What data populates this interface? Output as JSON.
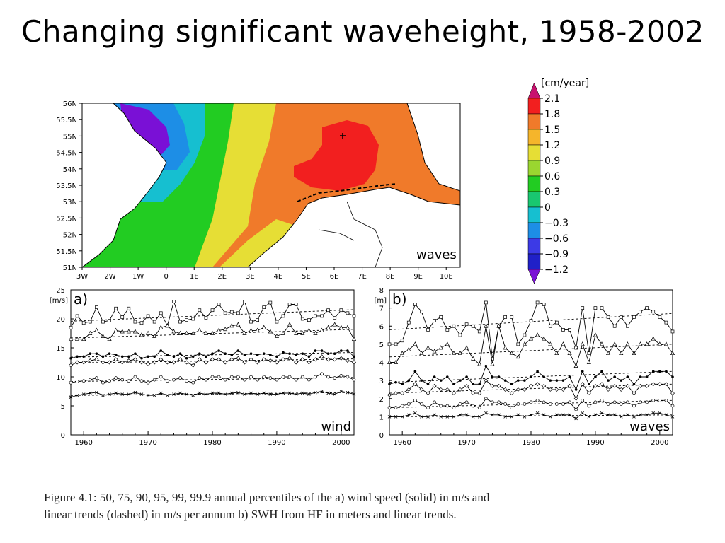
{
  "page": {
    "title": "Changing significant waveheight, 1958-2002",
    "caption_line1": "Figure 4.1:  50, 75, 90, 95, 99, 99.9 annual percentiles of the a) wind speed (solid) in m/s and",
    "caption_line2": "linear trends (dashed) in m/s per annum b) SWH from HF in meters and linear trends."
  },
  "colors": {
    "scale": [
      "#7a10d6",
      "#3c3ae6",
      "#1d8ee6",
      "#16bfd0",
      "#19c770",
      "#22cc22",
      "#9ad630",
      "#e6de35",
      "#f5b52b",
      "#f07a2a",
      "#f21f1f",
      "#c8126e"
    ],
    "land": "#ffffff",
    "coast": "#000000"
  },
  "map": {
    "label": "waves",
    "lat_ticks": [
      "56N",
      "55.5N",
      "55N",
      "54.5N",
      "54N",
      "53.5N",
      "53N",
      "52.5N",
      "52N",
      "51.5N",
      "51N"
    ],
    "lon_ticks": [
      "3W",
      "2W",
      "1W",
      "0",
      "1E",
      "2E",
      "3E",
      "4E",
      "5E",
      "6E",
      "7E",
      "8E",
      "9E",
      "10E"
    ],
    "colorbar": {
      "unit": "[cm/year]",
      "labels": [
        "2.1",
        "1.8",
        "1.5",
        "1.2",
        "0.9",
        "0.6",
        "0.3",
        "0",
        "−0.3",
        "−0.6",
        "−0.9",
        "−1.2"
      ]
    }
  },
  "chart_data": [
    {
      "type": "line",
      "panel": "a)",
      "label": "wind",
      "ylabel": "[m/s]",
      "xlim": [
        1958,
        2002
      ],
      "ylim": [
        0,
        25
      ],
      "x_ticks": [
        "1960",
        "1970",
        "1980",
        "1990",
        "2000"
      ],
      "y_ticks": [
        "0",
        "5",
        "10",
        "15",
        "20",
        "25"
      ],
      "x": [
        1958,
        1959,
        1960,
        1961,
        1962,
        1963,
        1964,
        1965,
        1966,
        1967,
        1968,
        1969,
        1970,
        1971,
        1972,
        1973,
        1974,
        1975,
        1976,
        1977,
        1978,
        1979,
        1980,
        1981,
        1982,
        1983,
        1984,
        1985,
        1986,
        1987,
        1988,
        1989,
        1990,
        1991,
        1992,
        1993,
        1994,
        1995,
        1996,
        1997,
        1998,
        1999,
        2000,
        2001,
        2002
      ],
      "series": [
        {
          "marker": "square",
          "values": [
            18.5,
            20.5,
            19.3,
            19.5,
            22.0,
            19.5,
            19.7,
            21.8,
            20.3,
            21.8,
            19.5,
            19.3,
            20.5,
            19.5,
            21.0,
            18.8,
            23.0,
            19.5,
            19.8,
            20.0,
            21.5,
            20.2,
            21.5,
            22.5,
            21.0,
            21.2,
            21.0,
            23.0,
            19.5,
            19.8,
            22.0,
            22.8,
            19.5,
            20.5,
            22.5,
            22.5,
            20.0,
            19.8,
            20.5,
            20.5,
            21.5,
            20.2,
            21.5,
            21.0,
            20.5
          ],
          "trend": [
            19.6,
            21.6
          ]
        },
        {
          "marker": "triangle",
          "values": [
            16.5,
            16.5,
            16.5,
            17.5,
            18.0,
            17.0,
            16.5,
            18.0,
            17.8,
            17.8,
            17.8,
            17.2,
            17.5,
            17.0,
            18.5,
            18.8,
            17.8,
            17.5,
            17.5,
            17.5,
            18.0,
            17.5,
            17.5,
            18.0,
            18.2,
            18.8,
            19.0,
            17.5,
            18.0,
            18.0,
            18.5,
            17.8,
            17.0,
            17.5,
            19.0,
            17.5,
            17.5,
            18.0,
            17.5,
            18.0,
            18.5,
            19.0,
            18.5,
            18.5,
            16.5
          ],
          "trend": [
            16.7,
            18.2
          ]
        },
        {
          "marker": "filled",
          "values": [
            13.2,
            13.5,
            13.5,
            14.0,
            14.0,
            13.5,
            14.0,
            13.8,
            13.5,
            13.5,
            14.0,
            13.2,
            13.5,
            13.5,
            14.5,
            13.8,
            13.5,
            14.0,
            13.2,
            13.5,
            14.0,
            13.5,
            14.0,
            14.5,
            14.0,
            13.8,
            14.5,
            13.8,
            14.0,
            13.8,
            14.0,
            13.8,
            13.5,
            14.2,
            14.0,
            13.8,
            14.0,
            13.5,
            14.5,
            14.5,
            14.0,
            14.0,
            14.5,
            14.5,
            13.5
          ],
          "trend": [
            13.4,
            14.2
          ]
        },
        {
          "marker": "diamond",
          "values": [
            12.0,
            12.5,
            12.5,
            12.8,
            13.0,
            12.5,
            12.5,
            13.0,
            12.5,
            12.8,
            13.0,
            12.5,
            12.2,
            12.5,
            13.0,
            12.5,
            12.5,
            13.0,
            12.5,
            12.0,
            13.0,
            12.5,
            13.0,
            13.0,
            12.5,
            13.0,
            13.2,
            12.5,
            13.0,
            12.5,
            13.0,
            12.8,
            12.5,
            13.0,
            13.2,
            12.5,
            13.0,
            12.5,
            13.0,
            13.5,
            13.0,
            13.0,
            13.2,
            12.8,
            12.5
          ],
          "trend": [
            12.4,
            13.1
          ]
        },
        {
          "marker": "circle",
          "values": [
            9.0,
            9.2,
            9.3,
            9.5,
            9.8,
            9.0,
            9.3,
            9.8,
            9.5,
            9.3,
            10.0,
            9.3,
            9.0,
            9.5,
            10.0,
            9.3,
            9.5,
            9.8,
            9.3,
            9.0,
            9.8,
            9.5,
            10.0,
            10.0,
            9.5,
            10.0,
            10.0,
            9.5,
            10.0,
            9.5,
            10.0,
            9.8,
            9.5,
            10.0,
            10.0,
            9.5,
            10.0,
            9.5,
            10.0,
            10.5,
            10.0,
            9.8,
            10.2,
            10.0,
            9.5
          ],
          "trend": [
            9.2,
            9.9
          ]
        },
        {
          "marker": "cross",
          "values": [
            6.5,
            6.8,
            7.0,
            7.2,
            7.3,
            6.8,
            7.0,
            7.2,
            7.0,
            7.0,
            7.3,
            7.0,
            6.8,
            6.8,
            7.2,
            6.8,
            7.0,
            7.2,
            7.0,
            6.8,
            7.2,
            7.0,
            7.2,
            7.2,
            7.0,
            7.2,
            7.3,
            7.0,
            7.2,
            7.0,
            7.2,
            7.0,
            7.0,
            7.2,
            7.2,
            7.0,
            7.2,
            7.0,
            7.3,
            7.5,
            7.2,
            7.0,
            7.5,
            7.3,
            7.0
          ],
          "trend": [
            6.8,
            7.3
          ]
        }
      ]
    },
    {
      "type": "line",
      "panel": "b)",
      "label": "waves",
      "ylabel": "[m]",
      "xlim": [
        1958,
        2002
      ],
      "ylim": [
        0,
        8
      ],
      "x_ticks": [
        "1960",
        "1970",
        "1980",
        "1990",
        "2000"
      ],
      "y_ticks": [
        "0",
        "1",
        "2",
        "3",
        "4",
        "5",
        "6",
        "7",
        "8"
      ],
      "x": [
        1958,
        1959,
        1960,
        1961,
        1962,
        1963,
        1964,
        1965,
        1966,
        1967,
        1968,
        1969,
        1970,
        1971,
        1972,
        1973,
        1974,
        1975,
        1976,
        1977,
        1978,
        1979,
        1980,
        1981,
        1982,
        1983,
        1984,
        1985,
        1986,
        1987,
        1988,
        1989,
        1990,
        1991,
        1992,
        1993,
        1994,
        1995,
        1996,
        1997,
        1998,
        1999,
        2000,
        2001,
        2002
      ],
      "series": [
        {
          "marker": "square",
          "values": [
            5.0,
            5.0,
            5.2,
            6.2,
            7.2,
            6.8,
            5.8,
            6.3,
            6.5,
            5.8,
            6.0,
            5.5,
            6.1,
            6.0,
            5.7,
            7.3,
            4.2,
            6.0,
            6.5,
            6.5,
            5.0,
            5.5,
            6.3,
            7.3,
            7.2,
            6.0,
            6.2,
            5.8,
            5.8,
            4.8,
            7.0,
            4.5,
            7.0,
            7.0,
            6.5,
            6.0,
            6.5,
            6.0,
            6.5,
            6.8,
            7.0,
            6.8,
            6.5,
            6.2,
            5.7
          ],
          "trend": [
            5.8,
            6.7
          ]
        },
        {
          "marker": "triangle",
          "values": [
            4.0,
            4.0,
            4.5,
            4.7,
            5.0,
            4.5,
            4.8,
            4.6,
            4.8,
            5.0,
            4.5,
            4.5,
            4.8,
            4.2,
            3.9,
            6.0,
            3.9,
            6.0,
            4.8,
            4.5,
            4.3,
            5.0,
            5.3,
            5.5,
            5.3,
            5.0,
            4.5,
            5.0,
            4.5,
            3.8,
            5.0,
            4.0,
            5.5,
            5.0,
            4.5,
            5.0,
            4.5,
            5.0,
            4.5,
            5.0,
            5.0,
            5.3,
            5.0,
            5.0,
            4.5
          ],
          "trend": [
            4.3,
            5.0
          ]
        },
        {
          "marker": "filled",
          "values": [
            2.8,
            2.9,
            2.8,
            3.0,
            3.5,
            3.0,
            2.8,
            3.2,
            3.0,
            3.2,
            2.8,
            3.0,
            3.2,
            2.8,
            2.8,
            3.8,
            3.2,
            3.2,
            3.0,
            2.8,
            3.0,
            3.0,
            3.2,
            3.5,
            3.2,
            3.0,
            3.0,
            3.0,
            3.2,
            2.5,
            3.5,
            2.8,
            3.2,
            3.5,
            3.0,
            3.2,
            3.0,
            3.2,
            2.8,
            3.2,
            3.2,
            3.5,
            3.5,
            3.5,
            3.2
          ],
          "trend": [
            2.9,
            3.5
          ]
        },
        {
          "marker": "diamond",
          "values": [
            2.2,
            2.3,
            2.3,
            2.5,
            2.8,
            2.5,
            2.3,
            2.7,
            2.5,
            2.5,
            2.3,
            2.5,
            2.7,
            2.3,
            2.3,
            3.0,
            2.7,
            2.7,
            2.5,
            2.3,
            2.5,
            2.5,
            2.7,
            2.8,
            2.7,
            2.5,
            2.5,
            2.5,
            2.7,
            2.0,
            2.8,
            2.3,
            2.7,
            2.8,
            2.5,
            2.7,
            2.5,
            2.7,
            2.3,
            2.7,
            2.7,
            2.8,
            2.8,
            2.8,
            2.3
          ],
          "trend": [
            2.3,
            2.8
          ]
        },
        {
          "marker": "circle",
          "values": [
            1.5,
            1.5,
            1.6,
            1.7,
            1.9,
            1.7,
            1.5,
            1.8,
            1.6,
            1.6,
            1.5,
            1.7,
            1.8,
            1.6,
            1.5,
            2.0,
            1.8,
            1.8,
            1.7,
            1.5,
            1.7,
            1.7,
            1.8,
            1.9,
            1.8,
            1.7,
            1.7,
            1.7,
            1.8,
            1.4,
            1.9,
            1.6,
            1.8,
            1.9,
            1.7,
            1.8,
            1.7,
            1.8,
            1.6,
            1.8,
            1.8,
            1.9,
            1.9,
            1.9,
            1.6
          ],
          "trend": [
            1.5,
            1.9
          ]
        },
        {
          "marker": "cross",
          "values": [
            1.0,
            1.0,
            1.0,
            1.1,
            1.2,
            1.0,
            1.0,
            1.1,
            1.0,
            1.0,
            1.0,
            1.1,
            1.1,
            1.0,
            1.0,
            1.2,
            1.1,
            1.1,
            1.0,
            1.0,
            1.1,
            1.0,
            1.1,
            1.2,
            1.1,
            1.0,
            1.1,
            1.1,
            1.1,
            0.9,
            1.2,
            1.0,
            1.1,
            1.2,
            1.1,
            1.1,
            1.0,
            1.1,
            1.0,
            1.1,
            1.1,
            1.2,
            1.2,
            1.1,
            1.0
          ],
          "trend": [
            1.0,
            1.1
          ]
        }
      ]
    }
  ]
}
